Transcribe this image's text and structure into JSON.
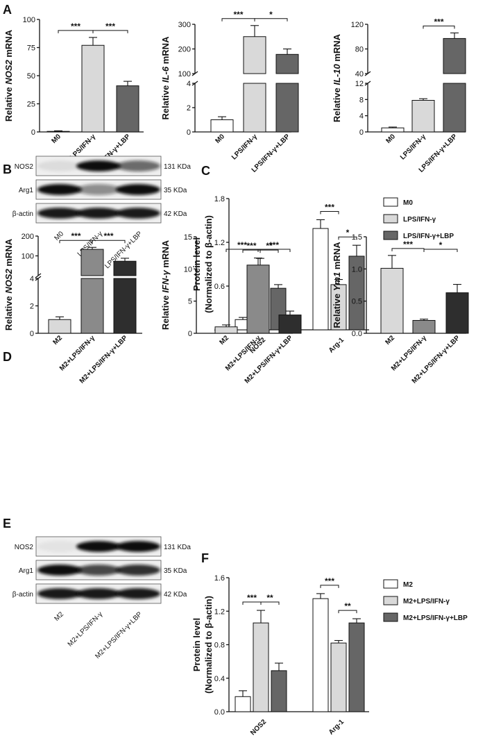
{
  "panel_letters": [
    "A",
    "B",
    "C",
    "D",
    "E",
    "F"
  ],
  "colors": {
    "c0": "#ffffff",
    "c1": "#d9d9d9",
    "c2": "#666666",
    "c3": "#8a8a8a",
    "c4": "#2e2e2e"
  },
  "chart_data": [
    {
      "id": "A1",
      "type": "bar",
      "categories": [
        "M0",
        "LPS/IFN-γ",
        "LPS/IFN-γ+LBP"
      ],
      "values": [
        0.5,
        77,
        41
      ],
      "errors": [
        0.5,
        7,
        4
      ],
      "ylabel": [
        "Relative ",
        "NOS2",
        " mRNA"
      ],
      "yticks": [
        0,
        25,
        50,
        75,
        100
      ],
      "ylim": [
        0,
        100
      ],
      "colors": [
        "c0",
        "c1",
        "c2"
      ],
      "significance": [
        {
          "from": 0,
          "to": 1,
          "label": "***"
        },
        {
          "from": 1,
          "to": 2,
          "label": "***"
        }
      ]
    },
    {
      "id": "A2",
      "type": "bar",
      "broken_axis": true,
      "categories": [
        "M0",
        "LPS/IFN-γ",
        "LPS/IFN-γ+LBP"
      ],
      "values": [
        1,
        250,
        178
      ],
      "errors": [
        0.25,
        45,
        22
      ],
      "ylabel": [
        "Relative ",
        "IL-6",
        " mRNA"
      ],
      "yticks_low": [
        0,
        2,
        4
      ],
      "yticks_high": [
        100,
        200,
        300
      ],
      "ylim_low": [
        0,
        4
      ],
      "ylim_high": [
        100,
        300
      ],
      "colors": [
        "c0",
        "c1",
        "c2"
      ],
      "significance": [
        {
          "from": 0,
          "to": 1,
          "label": "***"
        },
        {
          "from": 1,
          "to": 2,
          "label": "*"
        }
      ]
    },
    {
      "id": "A3",
      "type": "bar",
      "broken_axis": true,
      "categories": [
        "M0",
        "LPS/IFN-γ",
        "LPS/IFN-γ+LBP"
      ],
      "values": [
        1,
        7.8,
        97
      ],
      "errors": [
        0.2,
        0.4,
        9
      ],
      "ylabel": [
        "Relative ",
        "IL-10",
        " mRNA"
      ],
      "yticks_low": [
        0,
        4,
        8,
        12
      ],
      "yticks_high": [
        40,
        80,
        120
      ],
      "ylim_low": [
        0,
        12
      ],
      "ylim_high": [
        40,
        120
      ],
      "colors": [
        "c0",
        "c1",
        "c2"
      ],
      "significance": [
        {
          "from": 1,
          "to": 2,
          "label": "***"
        }
      ]
    },
    {
      "id": "C",
      "type": "bar",
      "groups": [
        "NOS2",
        "Arg-1"
      ],
      "series": [
        {
          "name": "M0",
          "values": [
            0.14,
            1.39
          ],
          "errors": [
            0.03,
            0.12
          ]
        },
        {
          "name": "LPS/IFN-γ",
          "values": [
            0.88,
            0.62
          ],
          "errors": [
            0.1,
            0.07
          ]
        },
        {
          "name": "LPS/IFN-γ+LBP",
          "values": [
            0.57,
            1.01
          ],
          "errors": [
            0.05,
            0.15
          ]
        }
      ],
      "ylabel": [
        "Protein level",
        "(Normalized to β-actin)"
      ],
      "yticks": [
        "0.0",
        "0.6",
        "1.2",
        "1.8"
      ],
      "ylim": [
        0,
        1.8
      ],
      "colors": [
        "c0",
        "c1",
        "c2"
      ],
      "significance": [
        {
          "group": 0,
          "from": 0,
          "to": 1,
          "label": "***"
        },
        {
          "group": 0,
          "from": 1,
          "to": 2,
          "label": "**"
        },
        {
          "group": 1,
          "from": 0,
          "to": 1,
          "label": "***"
        },
        {
          "group": 1,
          "from": 1,
          "to": 2,
          "label": "*"
        }
      ]
    },
    {
      "id": "D1",
      "type": "bar",
      "broken_axis": true,
      "categories": [
        "M2",
        "M2+LPS/IFN-γ",
        "M2+LPS/IFN-γ+LBP"
      ],
      "values": [
        1,
        133,
        73
      ],
      "errors": [
        0.2,
        10,
        15
      ],
      "ylabel": [
        "Relative ",
        "NOS2",
        " mRNA"
      ],
      "yticks_low": [
        0,
        2,
        4
      ],
      "yticks_high": [
        100,
        200
      ],
      "ylim_low": [
        0,
        4
      ],
      "ylim_high": [
        0,
        200
      ],
      "colors": [
        "c1",
        "c3",
        "c4"
      ],
      "significance": [
        {
          "from": 0,
          "to": 1,
          "label": "***"
        },
        {
          "from": 1,
          "to": 2,
          "label": "***"
        }
      ]
    },
    {
      "id": "D2",
      "type": "bar",
      "categories": [
        "M2",
        "M2+LPS/IFN-γ",
        "M2+LPS/IFN-γ+LBP"
      ],
      "values": [
        1,
        10.6,
        2.85
      ],
      "errors": [
        0.3,
        1.1,
        0.6
      ],
      "ylabel": [
        "Relative ",
        "IFN-γ",
        " mRNA"
      ],
      "yticks": [
        0,
        5,
        10,
        15
      ],
      "ylim": [
        0,
        15
      ],
      "colors": [
        "c1",
        "c3",
        "c4"
      ],
      "significance": [
        {
          "from": 0,
          "to": 1,
          "label": "***"
        },
        {
          "from": 1,
          "to": 2,
          "label": "***"
        }
      ]
    },
    {
      "id": "D3",
      "type": "bar",
      "categories": [
        "M2",
        "M2+LPS/IFN-γ",
        "M2+LPS/IFN-γ+LBP"
      ],
      "values": [
        1.01,
        0.2,
        0.63
      ],
      "errors": [
        0.2,
        0.02,
        0.13
      ],
      "ylabel": [
        "Relative ",
        "Ym1",
        " mRNA"
      ],
      "yticks": [
        "0.0",
        "0.5",
        "1.0",
        "1.5"
      ],
      "ylim": [
        0,
        1.5
      ],
      "colors": [
        "c1",
        "c3",
        "c4"
      ],
      "significance": [
        {
          "from": 0,
          "to": 1,
          "label": "***"
        },
        {
          "from": 1,
          "to": 2,
          "label": "*"
        }
      ]
    },
    {
      "id": "F",
      "type": "bar",
      "groups": [
        "NOS2",
        "Arg-1"
      ],
      "series": [
        {
          "name": "M2",
          "values": [
            0.18,
            1.35
          ],
          "errors": [
            0.07,
            0.06
          ]
        },
        {
          "name": "M2+LPS/IFN-γ",
          "values": [
            1.06,
            0.82
          ],
          "errors": [
            0.15,
            0.03
          ]
        },
        {
          "name": "M2+LPS/IFN-γ+LBP",
          "values": [
            0.49,
            1.06
          ],
          "errors": [
            0.09,
            0.05
          ]
        }
      ],
      "ylabel": [
        "Protein level",
        "(Normalized to β-actin)"
      ],
      "yticks": [
        "0.0",
        "0.4",
        "0.8",
        "1.2",
        "1.6"
      ],
      "ylim": [
        0,
        1.6
      ],
      "colors": [
        "c0",
        "c1",
        "c2"
      ],
      "significance": [
        {
          "group": 0,
          "from": 0,
          "to": 1,
          "label": "***"
        },
        {
          "group": 0,
          "from": 1,
          "to": 2,
          "label": "**"
        },
        {
          "group": 1,
          "from": 0,
          "to": 1,
          "label": "***"
        },
        {
          "group": 1,
          "from": 1,
          "to": 2,
          "label": "**"
        }
      ]
    }
  ],
  "blots": [
    {
      "id": "B",
      "rows": [
        {
          "name": "NOS2",
          "kda": "131 KDa",
          "bands": [
            0.08,
            1.0,
            0.6
          ]
        },
        {
          "name": "Arg1",
          "kda": "35 KDa",
          "bands": [
            1.0,
            0.45,
            1.0
          ]
        },
        {
          "name": "β-actin",
          "kda": "42 KDa",
          "bands": [
            0.95,
            0.95,
            0.95
          ]
        }
      ],
      "lanes": [
        "M0",
        "LPS/IFN-γ",
        "LPS/IFN-γ+LBP"
      ]
    },
    {
      "id": "E",
      "rows": [
        {
          "name": "NOS2",
          "kda": "131 KDa",
          "bands": [
            0.05,
            1.0,
            1.0
          ]
        },
        {
          "name": "Arg1",
          "kda": "35 KDa",
          "bands": [
            1.0,
            0.75,
            0.85
          ]
        },
        {
          "name": "β-actin",
          "kda": "42 KDa",
          "bands": [
            0.95,
            0.95,
            0.95
          ]
        }
      ],
      "lanes": [
        "M2",
        "M2+LPS/IFN-γ",
        "M2+LPS/IFN-γ+LBP"
      ]
    }
  ]
}
